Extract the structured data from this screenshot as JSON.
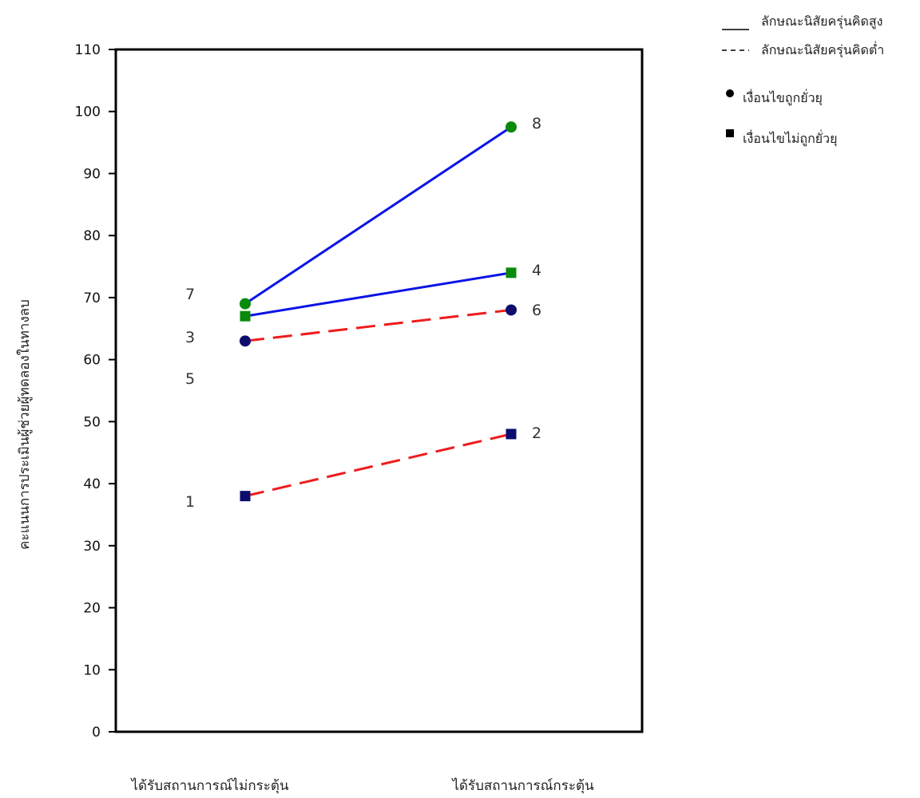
{
  "chart_data": {
    "type": "line",
    "title": "",
    "ylabel": "คะแนนการประเมินผู้ช่วยผู้ทดลองในทางลบ",
    "xlabel": "",
    "ylim": [
      0,
      110
    ],
    "yticks": [
      0,
      10,
      20,
      30,
      40,
      50,
      60,
      70,
      80,
      90,
      100,
      110
    ],
    "categories": [
      "ได้รับสถานการณ์ไม่กระตุ้น",
      "ได้รับสถานการณ์กระตุ้น"
    ],
    "grid": false,
    "legend_position": "top-right",
    "legend": [
      {
        "symbol": "solid-line",
        "text": "ลักษณะนิสัยครุ่นคิดสูง"
      },
      {
        "symbol": "dashed-line",
        "text": "ลักษณะนิสัยครุ่นคิดต่ำ"
      },
      {
        "symbol": "circle",
        "text": "เงื่อนไขถูกยั่วยุ"
      },
      {
        "symbol": "square",
        "text": "เงื่อนไขไม่ถูกยั่วยุ"
      }
    ],
    "series": [
      {
        "line": "solid",
        "color": "#0a14e6",
        "marker": "circle",
        "marker_color": "#0a8a0a",
        "values": [
          69,
          97.5
        ],
        "labels": [
          "7",
          "8"
        ]
      },
      {
        "line": "solid",
        "color": "#0a14e6",
        "marker": "square",
        "marker_color": "#0a8a0a",
        "values": [
          67,
          74
        ],
        "labels": [
          "3",
          "4"
        ]
      },
      {
        "line": "dashed",
        "color": "#ee1c1c",
        "marker": "circle",
        "marker_color": "#0c0c6e",
        "values": [
          63,
          68
        ],
        "labels": [
          "5",
          "6"
        ]
      },
      {
        "line": "dashed",
        "color": "#ee1c1c",
        "marker": "square",
        "marker_color": "#0c0c6e",
        "values": [
          38,
          48
        ],
        "labels": [
          "1",
          "2"
        ]
      }
    ]
  }
}
